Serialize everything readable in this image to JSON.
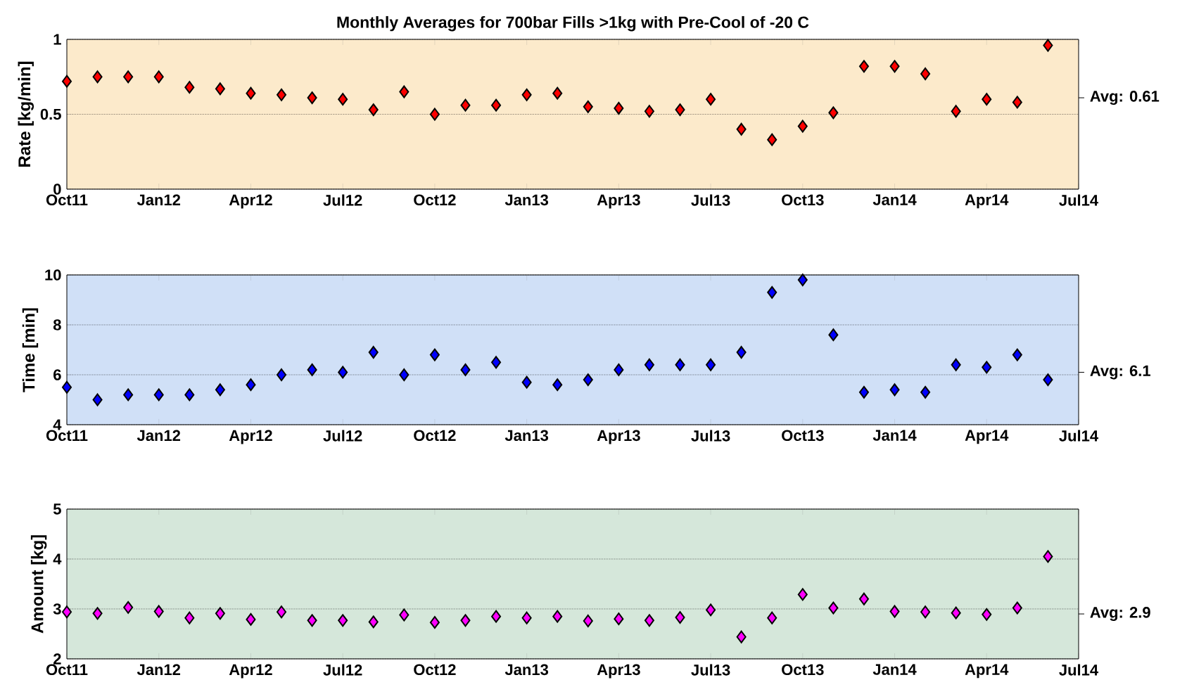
{
  "chart_data": [
    {
      "type": "scatter",
      "title": "Monthly Averages for 700bar Fills >1kg with Pre-Cool of -20 C",
      "ylabel": "Rate [kg/min]",
      "x": [
        "2011-10",
        "2011-11",
        "2011-12",
        "2012-01",
        "2012-02",
        "2012-03",
        "2012-04",
        "2012-05",
        "2012-06",
        "2012-07",
        "2012-08",
        "2012-09",
        "2012-10",
        "2012-11",
        "2012-12",
        "2013-01",
        "2013-02",
        "2013-03",
        "2013-04",
        "2013-05",
        "2013-06",
        "2013-07",
        "2013-08",
        "2013-09",
        "2013-10",
        "2013-11",
        "2013-12",
        "2014-01",
        "2014-02",
        "2014-03",
        "2014-04",
        "2014-05",
        "2014-06"
      ],
      "series": [
        {
          "color": "#ff0000",
          "values": [
            0.72,
            0.75,
            0.75,
            0.75,
            0.68,
            0.67,
            0.64,
            0.63,
            0.61,
            0.6,
            0.53,
            0.65,
            0.5,
            0.56,
            0.56,
            0.63,
            0.64,
            0.55,
            0.54,
            0.52,
            0.53,
            0.6,
            0.4,
            0.33,
            0.42,
            0.51,
            0.82,
            0.82,
            0.77,
            0.52,
            0.6,
            0.58,
            0.96
          ]
        }
      ],
      "marker": "diamond",
      "grid": "y",
      "xlim": [
        "2011-10",
        "2014-07"
      ],
      "xticks": [
        {
          "value": "2011-10",
          "label": "Oct11"
        },
        {
          "value": "2012-01",
          "label": "Jan12"
        },
        {
          "value": "2012-04",
          "label": "Apr12"
        },
        {
          "value": "2012-07",
          "label": "Jul12"
        },
        {
          "value": "2012-10",
          "label": "Oct12"
        },
        {
          "value": "2013-01",
          "label": "Jan13"
        },
        {
          "value": "2013-04",
          "label": "Apr13"
        },
        {
          "value": "2013-07",
          "label": "Jul13"
        },
        {
          "value": "2013-10",
          "label": "Oct13"
        },
        {
          "value": "2014-01",
          "label": "Jan14"
        },
        {
          "value": "2014-04",
          "label": "Apr14"
        },
        {
          "value": "2014-07",
          "label": "Jul14"
        }
      ],
      "ylim": [
        0,
        1
      ],
      "yticks": [
        0,
        0.5,
        1
      ],
      "annotations": [
        "Avg: 0.61"
      ]
    },
    {
      "type": "scatter",
      "ylabel": "Time [min]",
      "x": [
        "2011-10",
        "2011-11",
        "2011-12",
        "2012-01",
        "2012-02",
        "2012-03",
        "2012-04",
        "2012-05",
        "2012-06",
        "2012-07",
        "2012-08",
        "2012-09",
        "2012-10",
        "2012-11",
        "2012-12",
        "2013-01",
        "2013-02",
        "2013-03",
        "2013-04",
        "2013-05",
        "2013-06",
        "2013-07",
        "2013-08",
        "2013-09",
        "2013-10",
        "2013-11",
        "2013-12",
        "2014-01",
        "2014-02",
        "2014-03",
        "2014-04",
        "2014-05",
        "2014-06"
      ],
      "series": [
        {
          "color": "#0000ff",
          "values": [
            5.5,
            5.0,
            5.2,
            5.2,
            5.2,
            5.4,
            5.6,
            6.0,
            6.2,
            6.1,
            6.9,
            6.0,
            6.8,
            6.2,
            6.5,
            5.7,
            5.6,
            5.8,
            6.2,
            6.4,
            6.4,
            6.4,
            6.9,
            9.3,
            9.8,
            7.6,
            5.3,
            5.4,
            5.3,
            6.4,
            6.3,
            6.8,
            5.8
          ]
        }
      ],
      "marker": "diamond",
      "grid": "y",
      "xlim": [
        "2011-10",
        "2014-07"
      ],
      "xticks": [
        {
          "value": "2011-10",
          "label": "Oct11"
        },
        {
          "value": "2012-01",
          "label": "Jan12"
        },
        {
          "value": "2012-04",
          "label": "Apr12"
        },
        {
          "value": "2012-07",
          "label": "Jul12"
        },
        {
          "value": "2012-10",
          "label": "Oct12"
        },
        {
          "value": "2013-01",
          "label": "Jan13"
        },
        {
          "value": "2013-04",
          "label": "Apr13"
        },
        {
          "value": "2013-07",
          "label": "Jul13"
        },
        {
          "value": "2013-10",
          "label": "Oct13"
        },
        {
          "value": "2014-01",
          "label": "Jan14"
        },
        {
          "value": "2014-04",
          "label": "Apr14"
        },
        {
          "value": "2014-07",
          "label": "Jul14"
        }
      ],
      "ylim": [
        4,
        10
      ],
      "yticks": [
        4,
        6,
        8,
        10
      ],
      "annotations": [
        "Avg: 6.1"
      ]
    },
    {
      "type": "scatter",
      "ylabel": "Amount [kg]",
      "x": [
        "2011-10",
        "2011-11",
        "2011-12",
        "2012-01",
        "2012-02",
        "2012-03",
        "2012-04",
        "2012-05",
        "2012-06",
        "2012-07",
        "2012-08",
        "2012-09",
        "2012-10",
        "2012-11",
        "2012-12",
        "2013-01",
        "2013-02",
        "2013-03",
        "2013-04",
        "2013-05",
        "2013-06",
        "2013-07",
        "2013-08",
        "2013-09",
        "2013-10",
        "2013-11",
        "2013-12",
        "2014-01",
        "2014-02",
        "2014-03",
        "2014-04",
        "2014-05",
        "2014-06"
      ],
      "series": [
        {
          "color": "#ff00ff",
          "values": [
            2.94,
            2.91,
            3.03,
            2.95,
            2.82,
            2.91,
            2.79,
            2.94,
            2.77,
            2.77,
            2.74,
            2.88,
            2.73,
            2.77,
            2.85,
            2.82,
            2.85,
            2.76,
            2.8,
            2.77,
            2.83,
            2.98,
            2.44,
            2.82,
            3.29,
            3.02,
            3.2,
            2.95,
            2.94,
            2.92,
            2.89,
            3.02,
            4.05
          ]
        }
      ],
      "marker": "diamond",
      "grid": "y",
      "xlim": [
        "2011-10",
        "2014-07"
      ],
      "xticks": [
        {
          "value": "2011-10",
          "label": "Oct11"
        },
        {
          "value": "2012-01",
          "label": "Jan12"
        },
        {
          "value": "2012-04",
          "label": "Apr12"
        },
        {
          "value": "2012-07",
          "label": "Jul12"
        },
        {
          "value": "2012-10",
          "label": "Oct12"
        },
        {
          "value": "2013-01",
          "label": "Jan13"
        },
        {
          "value": "2013-04",
          "label": "Apr13"
        },
        {
          "value": "2013-07",
          "label": "Jul13"
        },
        {
          "value": "2013-10",
          "label": "Oct13"
        },
        {
          "value": "2014-01",
          "label": "Jan14"
        },
        {
          "value": "2014-04",
          "label": "Apr14"
        },
        {
          "value": "2014-07",
          "label": "Jul14"
        }
      ],
      "ylim": [
        2,
        5
      ],
      "yticks": [
        2,
        3,
        4,
        5
      ],
      "annotations": [
        "Avg: 2.9"
      ]
    }
  ]
}
